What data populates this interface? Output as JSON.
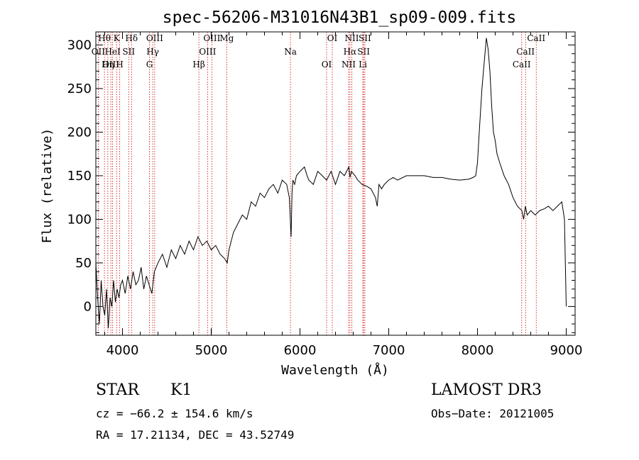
{
  "chart_data": {
    "type": "line",
    "title": "spec-56206-M31016N43B1_sp09-009.fits",
    "xlabel": "Wavelength (Å)",
    "ylabel": "Flux (relative)",
    "xlim": [
      3700,
      9100
    ],
    "ylim": [
      -33,
      315
    ],
    "xticks": [
      4000,
      5000,
      6000,
      7000,
      8000,
      9000
    ],
    "yticks": [
      0,
      50,
      100,
      150,
      200,
      250,
      300
    ],
    "series": [
      {
        "name": "spectrum",
        "x": [
          3700,
          3720,
          3740,
          3760,
          3780,
          3800,
          3820,
          3840,
          3860,
          3880,
          3900,
          3920,
          3940,
          3960,
          3980,
          4000,
          4030,
          4060,
          4090,
          4120,
          4150,
          4180,
          4210,
          4240,
          4270,
          4300,
          4330,
          4360,
          4400,
          4450,
          4500,
          4550,
          4600,
          4650,
          4700,
          4750,
          4800,
          4850,
          4900,
          4950,
          5000,
          5050,
          5100,
          5150,
          5180,
          5200,
          5250,
          5300,
          5350,
          5400,
          5450,
          5500,
          5550,
          5600,
          5650,
          5700,
          5750,
          5800,
          5850,
          5880,
          5900,
          5910,
          5920,
          5940,
          5960,
          6000,
          6050,
          6080,
          6100,
          6150,
          6200,
          6250,
          6300,
          6350,
          6400,
          6450,
          6500,
          6550,
          6563,
          6580,
          6620,
          6650,
          6700,
          6750,
          6800,
          6850,
          6870,
          6890,
          6920,
          6950,
          7000,
          7050,
          7100,
          7200,
          7300,
          7400,
          7500,
          7600,
          7700,
          7800,
          7900,
          7950,
          7980,
          8000,
          8020,
          8050,
          8080,
          8100,
          8120,
          8140,
          8160,
          8180,
          8200,
          8220,
          8250,
          8300,
          8350,
          8400,
          8450,
          8500,
          8520,
          8540,
          8560,
          8600,
          8650,
          8700,
          8750,
          8800,
          8850,
          8900,
          8950,
          8980,
          9000
        ],
        "values": [
          50,
          10,
          -20,
          30,
          0,
          -10,
          20,
          -25,
          10,
          0,
          30,
          5,
          20,
          10,
          25,
          30,
          15,
          35,
          20,
          40,
          25,
          30,
          45,
          20,
          35,
          25,
          15,
          40,
          50,
          60,
          45,
          65,
          55,
          70,
          60,
          75,
          65,
          80,
          70,
          75,
          65,
          70,
          60,
          55,
          50,
          65,
          85,
          95,
          105,
          100,
          120,
          115,
          130,
          125,
          135,
          140,
          130,
          145,
          140,
          125,
          80,
          130,
          145,
          140,
          150,
          155,
          160,
          150,
          145,
          140,
          155,
          150,
          145,
          155,
          140,
          155,
          150,
          160,
          148,
          155,
          150,
          145,
          140,
          138,
          135,
          125,
          115,
          140,
          135,
          140,
          145,
          148,
          145,
          150,
          150,
          150,
          148,
          148,
          146,
          145,
          146,
          148,
          150,
          165,
          200,
          250,
          285,
          308,
          295,
          270,
          230,
          200,
          190,
          175,
          165,
          150,
          140,
          125,
          115,
          110,
          100,
          115,
          105,
          110,
          105,
          110,
          112,
          115,
          110,
          115,
          120,
          100,
          0
        ]
      }
    ],
    "spectral_lines": [
      {
        "name": "Hθ",
        "x": 3797
      },
      {
        "name": "OII",
        "x": 3727
      },
      {
        "name": "OIII",
        "x": 3869
      },
      {
        "name": "K",
        "x": 3934
      },
      {
        "name": "HeI",
        "x": 3889
      },
      {
        "name": "Hη",
        "x": 3835
      },
      {
        "name": "Hδ",
        "x": 4102
      },
      {
        "name": "SII",
        "x": 4070
      },
      {
        "name": "H",
        "x": 3969
      },
      {
        "name": "OIII",
        "x": 4363
      },
      {
        "name": "Hγ",
        "x": 4341
      },
      {
        "name": "G",
        "x": 4304
      },
      {
        "name": "OIII",
        "x": 5007
      },
      {
        "name": "OIII",
        "x": 4959
      },
      {
        "name": "Hβ",
        "x": 4861
      },
      {
        "name": "Mg",
        "x": 5175
      },
      {
        "name": "Na",
        "x": 5893
      },
      {
        "name": "OI",
        "x": 6300
      },
      {
        "name": "OI",
        "x": 6364
      },
      {
        "name": "Hα",
        "x": 6563
      },
      {
        "name": "NII",
        "x": 6548
      },
      {
        "name": "NII",
        "x": 6584
      },
      {
        "name": "SII",
        "x": 6717
      },
      {
        "name": "Li",
        "x": 6708
      },
      {
        "name": "SII",
        "x": 6731
      },
      {
        "name": "CaII",
        "x": 8542
      },
      {
        "name": "CaII",
        "x": 8498
      },
      {
        "name": "CaII",
        "x": 8662
      }
    ]
  },
  "info": {
    "class": "STAR",
    "subclass": "K1",
    "survey": "LAMOST DR3",
    "cz": "cz = −66.2 ± 154.6 km/s",
    "obs_date": "Obs−Date: 20121005",
    "radec": "RA =  17.21134, DEC =  43.52749"
  },
  "colors": {
    "line": "#000000",
    "marker": "#cc0000"
  }
}
